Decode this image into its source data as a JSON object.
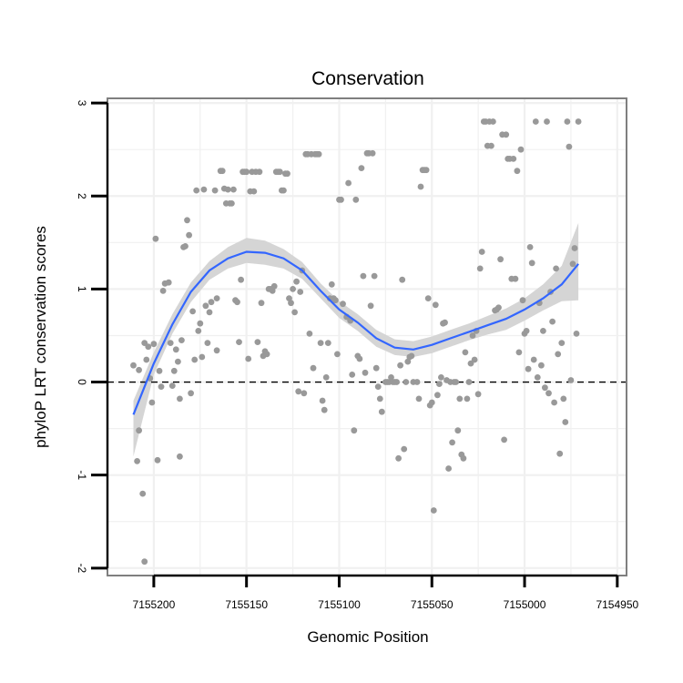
{
  "chart_data": {
    "type": "scatter",
    "title": "Conservation",
    "xlabel": "Genomic Position",
    "ylabel": "phyloP LRT conservation scores",
    "x_reversed": true,
    "xlim": [
      7155225,
      7154945
    ],
    "ylim": [
      -2.08,
      3.05
    ],
    "x_ticks": [
      7155200,
      7155150,
      7155100,
      7155050,
      7155000,
      7154950
    ],
    "y_ticks": [
      -2,
      -1,
      0,
      1,
      2,
      3
    ],
    "grid": true,
    "reference_line": {
      "y": 0,
      "style": "dashed"
    },
    "colors": {
      "points": "#999999",
      "smooth": "#3366FF",
      "band": "#D3D3D3",
      "frame": "#7f7f7f",
      "grid": "#f0f0f0"
    },
    "series": [
      {
        "name": "scores",
        "type": "scatter",
        "points": [
          [
            7155211,
            0.18
          ],
          [
            7155209,
            -0.85
          ],
          [
            7155208,
            -0.52
          ],
          [
            7155208,
            0.13
          ],
          [
            7155206,
            -1.2
          ],
          [
            7155205,
            -1.93
          ],
          [
            7155205,
            0.42
          ],
          [
            7155204,
            0.24
          ],
          [
            7155203,
            0.38
          ],
          [
            7155202,
            0.04
          ],
          [
            7155201,
            -0.22
          ],
          [
            7155200,
            0.41
          ],
          [
            7155199,
            1.54
          ],
          [
            7155198,
            -0.84
          ],
          [
            7155197,
            0.12
          ],
          [
            7155196,
            -0.05
          ],
          [
            7155195,
            0.98
          ],
          [
            7155194,
            1.06
          ],
          [
            7155192,
            1.07
          ],
          [
            7155191,
            0.42
          ],
          [
            7155190,
            -0.04
          ],
          [
            7155189,
            0.12
          ],
          [
            7155188,
            0.35
          ],
          [
            7155187,
            0.22
          ],
          [
            7155186,
            -0.18
          ],
          [
            7155186,
            -0.8
          ],
          [
            7155185,
            0.45
          ],
          [
            7155184,
            1.45
          ],
          [
            7155183,
            1.46
          ],
          [
            7155182,
            1.74
          ],
          [
            7155181,
            1.58
          ],
          [
            7155180,
            -0.12
          ],
          [
            7155179,
            0.76
          ],
          [
            7155178,
            0.24
          ],
          [
            7155177,
            2.06
          ],
          [
            7155176,
            0.55
          ],
          [
            7155175,
            0.63
          ],
          [
            7155174,
            0.27
          ],
          [
            7155173,
            2.07
          ],
          [
            7155172,
            0.82
          ],
          [
            7155171,
            0.42
          ],
          [
            7155170,
            0.75
          ],
          [
            7155169,
            0.86
          ],
          [
            7155167,
            2.06
          ],
          [
            7155166,
            0.9
          ],
          [
            7155166,
            0.34
          ],
          [
            7155164,
            2.27
          ],
          [
            7155163,
            2.27
          ],
          [
            7155162,
            2.08
          ],
          [
            7155161,
            1.92
          ],
          [
            7155160,
            2.07
          ],
          [
            7155159,
            1.92
          ],
          [
            7155158,
            1.92
          ],
          [
            7155157,
            2.07
          ],
          [
            7155156,
            0.88
          ],
          [
            7155155,
            0.86
          ],
          [
            7155154,
            0.43
          ],
          [
            7155153,
            1.1
          ],
          [
            7155152,
            2.26
          ],
          [
            7155151,
            2.26
          ],
          [
            7155150,
            2.26
          ],
          [
            7155149,
            0.25
          ],
          [
            7155148,
            2.05
          ],
          [
            7155147,
            2.26
          ],
          [
            7155146,
            2.05
          ],
          [
            7155145,
            2.26
          ],
          [
            7155144,
            0.43
          ],
          [
            7155143,
            2.26
          ],
          [
            7155142,
            0.85
          ],
          [
            7155141,
            0.28
          ],
          [
            7155140,
            0.33
          ],
          [
            7155139,
            0.3
          ],
          [
            7155138,
            1.0
          ],
          [
            7155137,
            1.0
          ],
          [
            7155136,
            0.98
          ],
          [
            7155135,
            1.03
          ],
          [
            7155134,
            2.26
          ],
          [
            7155133,
            2.26
          ],
          [
            7155132,
            2.26
          ],
          [
            7155131,
            2.06
          ],
          [
            7155130,
            2.06
          ],
          [
            7155129,
            2.24
          ],
          [
            7155128,
            2.24
          ],
          [
            7155127,
            0.9
          ],
          [
            7155126,
            0.85
          ],
          [
            7155125,
            1.0
          ],
          [
            7155124,
            0.75
          ],
          [
            7155123,
            1.08
          ],
          [
            7155122,
            -0.1
          ],
          [
            7155121,
            0.97
          ],
          [
            7155120,
            1.2
          ],
          [
            7155119,
            -0.12
          ],
          [
            7155118,
            2.45
          ],
          [
            7155117,
            2.45
          ],
          [
            7155116,
            0.52
          ],
          [
            7155115,
            2.45
          ],
          [
            7155114,
            0.15
          ],
          [
            7155113,
            2.45
          ],
          [
            7155112,
            2.45
          ],
          [
            7155111,
            2.45
          ],
          [
            7155110,
            0.42
          ],
          [
            7155109,
            -0.2
          ],
          [
            7155108,
            -0.3
          ],
          [
            7155107,
            0.05
          ],
          [
            7155106,
            0.42
          ],
          [
            7155105,
            0.9
          ],
          [
            7155104,
            1.05
          ],
          [
            7155103,
            0.9
          ],
          [
            7155102,
            0.88
          ],
          [
            7155101,
            0.3
          ],
          [
            7155100,
            1.96
          ],
          [
            7155099,
            1.96
          ],
          [
            7155098,
            0.84
          ],
          [
            7155096,
            0.7
          ],
          [
            7155095,
            2.14
          ],
          [
            7155094,
            0.66
          ],
          [
            7155093,
            0.08
          ],
          [
            7155092,
            -0.52
          ],
          [
            7155091,
            1.96
          ],
          [
            7155090,
            0.28
          ],
          [
            7155089,
            0.25
          ],
          [
            7155088,
            2.3
          ],
          [
            7155087,
            1.14
          ],
          [
            7155086,
            0.1
          ],
          [
            7155085,
            2.46
          ],
          [
            7155084,
            2.46
          ],
          [
            7155083,
            0.82
          ],
          [
            7155082,
            2.46
          ],
          [
            7155081,
            1.14
          ],
          [
            7155080,
            0.15
          ],
          [
            7155079,
            -0.05
          ],
          [
            7155078,
            -0.18
          ],
          [
            7155077,
            -0.32
          ],
          [
            7155075,
            0.0
          ],
          [
            7155074,
            0.0
          ],
          [
            7155073,
            0.0
          ],
          [
            7155072,
            0.05
          ],
          [
            7155071,
            0.0
          ],
          [
            7155070,
            0.0
          ],
          [
            7155069,
            0.0
          ],
          [
            7155068,
            -0.82
          ],
          [
            7155067,
            0.18
          ],
          [
            7155066,
            1.1
          ],
          [
            7155065,
            -0.72
          ],
          [
            7155064,
            0.0
          ],
          [
            7155063,
            0.22
          ],
          [
            7155062,
            0.27
          ],
          [
            7155061,
            0.28
          ],
          [
            7155060,
            0.0
          ],
          [
            7155058,
            0.0
          ],
          [
            7155057,
            -0.18
          ],
          [
            7155056,
            2.1
          ],
          [
            7155055,
            2.28
          ],
          [
            7155054,
            2.28
          ],
          [
            7155053,
            2.28
          ],
          [
            7155052,
            0.9
          ],
          [
            7155051,
            -0.25
          ],
          [
            7155050,
            -0.22
          ],
          [
            7155049,
            -1.38
          ],
          [
            7155048,
            0.83
          ],
          [
            7155047,
            -0.14
          ],
          [
            7155046,
            -0.02
          ],
          [
            7155045,
            0.05
          ],
          [
            7155044,
            0.63
          ],
          [
            7155043,
            0.64
          ],
          [
            7155042,
            0.02
          ],
          [
            7155041,
            -0.93
          ],
          [
            7155040,
            0.0
          ],
          [
            7155039,
            -0.65
          ],
          [
            7155038,
            0.0
          ],
          [
            7155037,
            0.0
          ],
          [
            7155036,
            -0.52
          ],
          [
            7155035,
            -0.18
          ],
          [
            7155034,
            -0.78
          ],
          [
            7155033,
            -0.82
          ],
          [
            7155032,
            0.32
          ],
          [
            7155031,
            -0.18
          ],
          [
            7155030,
            0.0
          ],
          [
            7155029,
            0.2
          ],
          [
            7155028,
            0.5
          ],
          [
            7155027,
            0.24
          ],
          [
            7155026,
            0.55
          ],
          [
            7155025,
            -0.13
          ],
          [
            7155024,
            1.22
          ],
          [
            7155023,
            1.4
          ],
          [
            7155022,
            2.8
          ],
          [
            7155021,
            2.8
          ],
          [
            7155020,
            2.54
          ],
          [
            7155019,
            2.8
          ],
          [
            7155018,
            2.54
          ],
          [
            7155017,
            2.8
          ],
          [
            7155016,
            0.77
          ],
          [
            7155015,
            0.78
          ],
          [
            7155014,
            0.8
          ],
          [
            7155013,
            1.32
          ],
          [
            7155012,
            2.66
          ],
          [
            7155011,
            -0.62
          ],
          [
            7155010,
            2.66
          ],
          [
            7155009,
            2.4
          ],
          [
            7155008,
            2.4
          ],
          [
            7155007,
            1.11
          ],
          [
            7155006,
            2.4
          ],
          [
            7155005,
            1.11
          ],
          [
            7155004,
            2.27
          ],
          [
            7155003,
            0.32
          ],
          [
            7155002,
            2.5
          ],
          [
            7155001,
            0.88
          ],
          [
            7155000,
            0.52
          ],
          [
            7154999,
            0.55
          ],
          [
            7154998,
            0.14
          ],
          [
            7154997,
            1.45
          ],
          [
            7154996,
            1.28
          ],
          [
            7154995,
            0.24
          ],
          [
            7154994,
            2.8
          ],
          [
            7154993,
            0.05
          ],
          [
            7154992,
            0.85
          ],
          [
            7154991,
            0.18
          ],
          [
            7154990,
            0.55
          ],
          [
            7154989,
            -0.06
          ],
          [
            7154988,
            2.8
          ],
          [
            7154987,
            -0.12
          ],
          [
            7154986,
            0.97
          ],
          [
            7154985,
            0.65
          ],
          [
            7154984,
            -0.22
          ],
          [
            7154983,
            1.22
          ],
          [
            7154982,
            0.3
          ],
          [
            7154981,
            -0.77
          ],
          [
            7154980,
            0.42
          ],
          [
            7154979,
            -0.18
          ],
          [
            7154978,
            -0.43
          ],
          [
            7154977,
            2.8
          ],
          [
            7154976,
            2.53
          ],
          [
            7154975,
            0.02
          ],
          [
            7154974,
            1.27
          ],
          [
            7154973,
            1.44
          ],
          [
            7154972,
            0.52
          ],
          [
            7154971,
            2.8
          ]
        ]
      },
      {
        "name": "loess smooth",
        "type": "line",
        "points": [
          [
            7155211,
            -0.35
          ],
          [
            7155200,
            0.2
          ],
          [
            7155190,
            0.62
          ],
          [
            7155180,
            0.97
          ],
          [
            7155170,
            1.2
          ],
          [
            7155160,
            1.33
          ],
          [
            7155150,
            1.4
          ],
          [
            7155140,
            1.39
          ],
          [
            7155130,
            1.33
          ],
          [
            7155120,
            1.2
          ],
          [
            7155110,
            0.98
          ],
          [
            7155100,
            0.78
          ],
          [
            7155090,
            0.64
          ],
          [
            7155080,
            0.47
          ],
          [
            7155070,
            0.37
          ],
          [
            7155060,
            0.35
          ],
          [
            7155050,
            0.4
          ],
          [
            7155040,
            0.47
          ],
          [
            7155030,
            0.54
          ],
          [
            7155020,
            0.61
          ],
          [
            7155010,
            0.68
          ],
          [
            7155000,
            0.78
          ],
          [
            7154990,
            0.9
          ],
          [
            7154980,
            1.05
          ],
          [
            7154971,
            1.27
          ]
        ],
        "band_upper": [
          -0.2,
          0.32,
          0.73,
          1.07,
          1.3,
          1.45,
          1.55,
          1.52,
          1.43,
          1.29,
          1.06,
          0.87,
          0.73,
          0.56,
          0.46,
          0.44,
          0.49,
          0.56,
          0.63,
          0.71,
          0.79,
          0.9,
          1.05,
          1.25,
          1.71
        ],
        "band_lower": [
          -0.8,
          0.08,
          0.52,
          0.86,
          1.1,
          1.22,
          1.28,
          1.26,
          1.22,
          1.11,
          0.9,
          0.69,
          0.55,
          0.38,
          0.29,
          0.27,
          0.31,
          0.38,
          0.45,
          0.51,
          0.56,
          0.66,
          0.77,
          0.87,
          0.88
        ]
      }
    ]
  }
}
